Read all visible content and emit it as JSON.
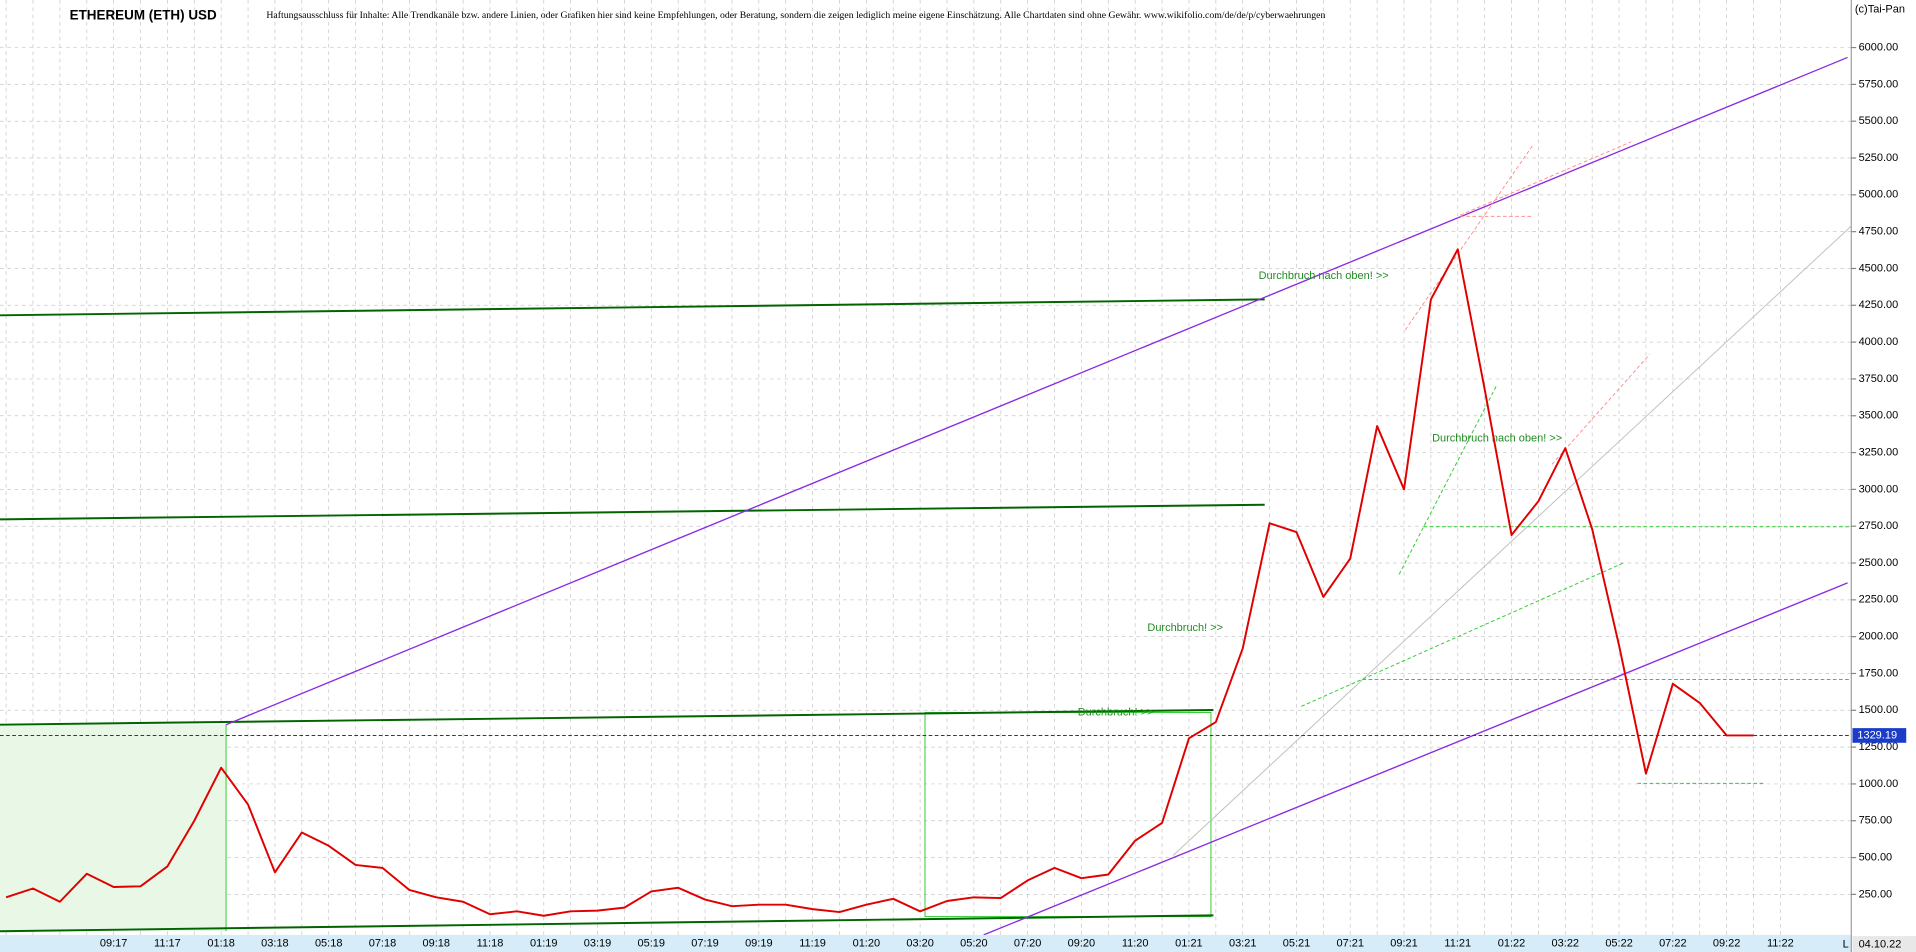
{
  "chart_data": {
    "type": "line",
    "title": "ETHEREUM (ETH) USD",
    "disclaimer": "Haftungsausschluss für Inhalte: Alle Trendkanäle bzw. andere Linien, oder Grafiken hier sind keine Empfehlungen, oder Beratung, sondern die zeigen lediglich meine eigene Einschätzung. Alle Chartdaten sind ohne Gewähr.  www.wikifolio.com/de/de/p/cyberwaehrungen",
    "copyright": "(c)Tai-Pan",
    "last_date": "04.10.22",
    "current_price": {
      "value": 1329.19,
      "label": "1329.19"
    },
    "annotations": [
      "Durchbruch nach oben! >>",
      "Durchbruch nach oben! >>",
      "Durchbruch! >>",
      "Durchbruch! >>"
    ],
    "corner_label": "L",
    "categories": [
      null,
      null,
      null,
      null,
      "09:17",
      null,
      "11:17",
      null,
      "01:18",
      null,
      "03:18",
      null,
      "05:18",
      null,
      "07:18",
      null,
      "09:18",
      null,
      "11:18",
      null,
      "01:19",
      null,
      "03:19",
      null,
      "05:19",
      null,
      "07:19",
      null,
      "09:19",
      null,
      "11:19",
      null,
      "01:20",
      null,
      "03:20",
      null,
      "05:20",
      null,
      "07:20",
      null,
      "09:20",
      null,
      "11:20",
      null,
      "01:21",
      null,
      "03:21",
      null,
      "05:21",
      null,
      "07:21",
      null,
      "09:21",
      null,
      "11:21",
      null,
      "01:22",
      null,
      "03:22",
      null,
      "05:22",
      null,
      "07:22",
      null,
      "09:22",
      null,
      "11:22"
    ],
    "series": [
      {
        "name": "ETH",
        "color": "#e00000",
        "values": [
          230,
          290,
          200,
          390,
          300,
          305,
          440,
          750,
          1110,
          860,
          400,
          670,
          580,
          450,
          430,
          280,
          230,
          200,
          115,
          135,
          105,
          135,
          140,
          160,
          270,
          295,
          215,
          170,
          180,
          180,
          150,
          130,
          180,
          220,
          135,
          205,
          230,
          225,
          345,
          430,
          360,
          385,
          615,
          735,
          1310,
          1420,
          1920,
          2770,
          2710,
          2270,
          2530,
          3430,
          3000,
          4290,
          4630,
          3680,
          2690,
          2920,
          3280,
          2730,
          1940,
          1070,
          1680,
          1550,
          1330,
          1329.19,
          null
        ]
      }
    ],
    "ylim": [
      -25,
      6323
    ],
    "yticks": [
      {
        "value": 250,
        "label": "250.00"
      },
      {
        "value": 500,
        "label": "500.00"
      },
      {
        "value": 750,
        "label": "750.00"
      },
      {
        "value": 1000,
        "label": "1000.00"
      },
      {
        "value": 1250,
        "label": "1250.00"
      },
      {
        "value": 1500,
        "label": "1500.00"
      },
      {
        "value": 1750,
        "label": "1750.00"
      },
      {
        "value": 2000,
        "label": "2000.00"
      },
      {
        "value": 2250,
        "label": "2250.00"
      },
      {
        "value": 2500,
        "label": "2500.00"
      },
      {
        "value": 2750,
        "label": "2750.00"
      },
      {
        "value": 3000,
        "label": "3000.00"
      },
      {
        "value": 3250,
        "label": "3250.00"
      },
      {
        "value": 3500,
        "label": "3500.00"
      },
      {
        "value": 3750,
        "label": "3750.00"
      },
      {
        "value": 4000,
        "label": "4000.00"
      },
      {
        "value": 4250,
        "label": "4250.00"
      },
      {
        "value": 4500,
        "label": "4500.00"
      },
      {
        "value": 4750,
        "label": "4750.00"
      },
      {
        "value": 5000,
        "label": "5000.00"
      },
      {
        "value": 5250,
        "label": "5250.00"
      },
      {
        "value": 5500,
        "label": "5500.00"
      },
      {
        "value": 5750,
        "label": "5750.00"
      },
      {
        "value": 6000,
        "label": "6000.00"
      }
    ],
    "grid": true
  }
}
